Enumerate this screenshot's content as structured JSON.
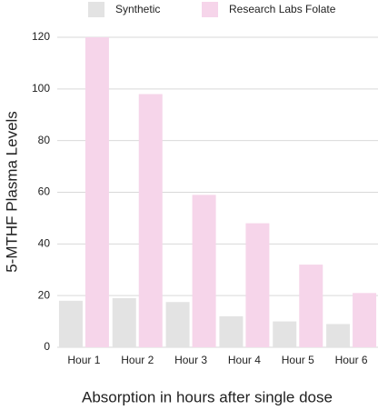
{
  "chart_data": {
    "type": "bar",
    "y_label": "5-MTHF Plasma Levels",
    "x_label": "Absorption in hours after single dose",
    "categories": [
      "Hour 1",
      "Hour 2",
      "Hour 3",
      "Hour 4",
      "Hour 5",
      "Hour 6"
    ],
    "series": [
      {
        "name": "Synthetic",
        "color": "#e3e3e3",
        "values": [
          18,
          19,
          17.5,
          12,
          10,
          9
        ]
      },
      {
        "name": "Research Labs Folate",
        "color": "#f6d5ea",
        "values": [
          120,
          98,
          59,
          48,
          32,
          21
        ]
      }
    ],
    "ylim": [
      0,
      120
    ],
    "yticks": [
      0,
      20,
      40,
      60,
      80,
      100,
      120
    ],
    "grid": true
  }
}
